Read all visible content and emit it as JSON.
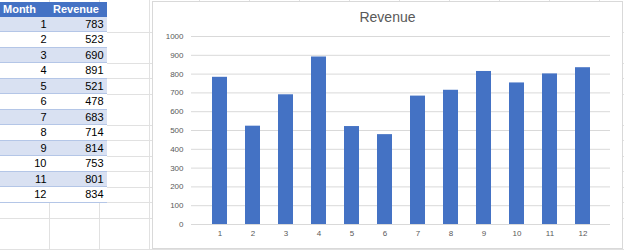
{
  "chart_data": {
    "type": "bar",
    "title": "Revenue",
    "categories": [
      1,
      2,
      3,
      4,
      5,
      6,
      7,
      8,
      9,
      10,
      11,
      12
    ],
    "values": [
      783,
      523,
      690,
      891,
      521,
      478,
      683,
      714,
      814,
      753,
      801,
      834
    ],
    "color": "#4472c4",
    "ylim": [
      0,
      1000
    ],
    "yticks": [
      0,
      100,
      200,
      300,
      400,
      500,
      600,
      700,
      800,
      900,
      1000
    ],
    "grid": true
  },
  "table": {
    "columns": [
      "Month",
      "Revenue"
    ],
    "rows": [
      [
        1,
        783
      ],
      [
        2,
        523
      ],
      [
        3,
        690
      ],
      [
        4,
        891
      ],
      [
        5,
        521
      ],
      [
        6,
        478
      ],
      [
        7,
        683
      ],
      [
        8,
        714
      ],
      [
        9,
        814
      ],
      [
        10,
        753
      ],
      [
        11,
        801
      ],
      [
        12,
        834
      ]
    ]
  }
}
